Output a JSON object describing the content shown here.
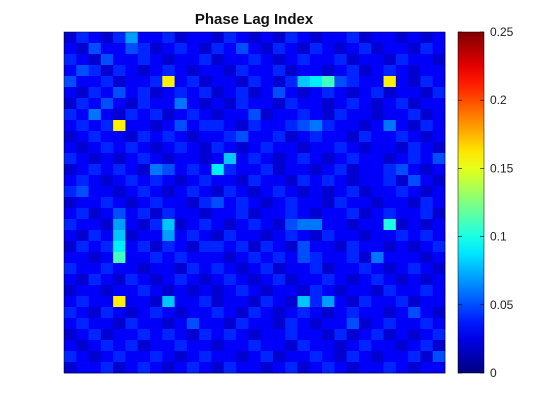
{
  "chart_data": {
    "type": "heatmap",
    "title": "Phase Lag Index",
    "xlabel": "",
    "ylabel": "",
    "rows": 31,
    "cols": 31,
    "colormap": "jet",
    "clim": [
      0,
      0.25
    ],
    "colorbar_ticks": [
      0,
      0.05,
      0.1,
      0.15,
      0.2,
      0.25
    ],
    "colorbar_tick_labels": [
      "0",
      "0.05",
      "0.1",
      "0.15",
      "0.2",
      "0.25"
    ],
    "background_level": 0.025,
    "values": [
      [
        0.02,
        0.04,
        0.03,
        0.02,
        0.04,
        0.07,
        0.03,
        0.03,
        0.04,
        0.02,
        0.03,
        0.03,
        0.02,
        0.04,
        0.03,
        0.02,
        0.03,
        0.02,
        0.04,
        0.03,
        0.02,
        0.03,
        0.03,
        0.04,
        0.02,
        0.03,
        0.03,
        0.02,
        0.03,
        0.02,
        0.03
      ],
      [
        0.03,
        0.02,
        0.05,
        0.03,
        0.03,
        0.05,
        0.04,
        0.02,
        0.03,
        0.04,
        0.03,
        0.02,
        0.04,
        0.03,
        0.05,
        0.03,
        0.02,
        0.04,
        0.03,
        0.02,
        0.04,
        0.03,
        0.02,
        0.03,
        0.04,
        0.02,
        0.03,
        0.03,
        0.02,
        0.04,
        0.03
      ],
      [
        0.04,
        0.03,
        0.02,
        0.05,
        0.03,
        0.03,
        0.04,
        0.03,
        0.02,
        0.03,
        0.03,
        0.04,
        0.02,
        0.03,
        0.03,
        0.04,
        0.03,
        0.02,
        0.03,
        0.04,
        0.03,
        0.03,
        0.04,
        0.02,
        0.03,
        0.03,
        0.02,
        0.04,
        0.03,
        0.03,
        0.02
      ],
      [
        0.03,
        0.05,
        0.04,
        0.02,
        0.04,
        0.03,
        0.02,
        0.03,
        0.04,
        0.03,
        0.02,
        0.03,
        0.03,
        0.02,
        0.04,
        0.03,
        0.03,
        0.04,
        0.02,
        0.03,
        0.03,
        0.02,
        0.03,
        0.04,
        0.02,
        0.03,
        0.04,
        0.03,
        0.02,
        0.03,
        0.03
      ],
      [
        0.05,
        0.03,
        0.03,
        0.04,
        0.02,
        0.03,
        0.03,
        0.04,
        0.16,
        0.03,
        0.04,
        0.02,
        0.03,
        0.03,
        0.02,
        0.04,
        0.03,
        0.02,
        0.04,
        0.08,
        0.09,
        0.11,
        0.05,
        0.04,
        0.03,
        0.03,
        0.16,
        0.03,
        0.02,
        0.04,
        0.03
      ],
      [
        0.03,
        0.02,
        0.04,
        0.03,
        0.05,
        0.03,
        0.04,
        0.02,
        0.03,
        0.04,
        0.03,
        0.04,
        0.02,
        0.03,
        0.04,
        0.02,
        0.03,
        0.05,
        0.03,
        0.02,
        0.03,
        0.04,
        0.03,
        0.02,
        0.03,
        0.04,
        0.02,
        0.03,
        0.03,
        0.02,
        0.04
      ],
      [
        0.02,
        0.04,
        0.03,
        0.05,
        0.03,
        0.02,
        0.04,
        0.03,
        0.03,
        0.06,
        0.03,
        0.02,
        0.03,
        0.02,
        0.04,
        0.03,
        0.03,
        0.02,
        0.04,
        0.03,
        0.03,
        0.02,
        0.03,
        0.04,
        0.03,
        0.02,
        0.03,
        0.04,
        0.02,
        0.03,
        0.03
      ],
      [
        0.04,
        0.03,
        0.06,
        0.03,
        0.02,
        0.04,
        0.03,
        0.04,
        0.02,
        0.03,
        0.04,
        0.03,
        0.02,
        0.03,
        0.03,
        0.05,
        0.02,
        0.03,
        0.03,
        0.04,
        0.03,
        0.02,
        0.04,
        0.03,
        0.03,
        0.02,
        0.03,
        0.03,
        0.04,
        0.02,
        0.03
      ],
      [
        0.03,
        0.04,
        0.03,
        0.04,
        0.16,
        0.03,
        0.03,
        0.02,
        0.03,
        0.05,
        0.03,
        0.04,
        0.04,
        0.03,
        0.02,
        0.04,
        0.03,
        0.03,
        0.04,
        0.05,
        0.06,
        0.04,
        0.03,
        0.03,
        0.02,
        0.03,
        0.06,
        0.03,
        0.02,
        0.04,
        0.03
      ],
      [
        0.02,
        0.03,
        0.04,
        0.03,
        0.03,
        0.02,
        0.04,
        0.03,
        0.04,
        0.03,
        0.02,
        0.03,
        0.03,
        0.04,
        0.05,
        0.03,
        0.03,
        0.04,
        0.02,
        0.03,
        0.04,
        0.03,
        0.03,
        0.02,
        0.04,
        0.03,
        0.03,
        0.04,
        0.03,
        0.02,
        0.03
      ],
      [
        0.03,
        0.02,
        0.03,
        0.04,
        0.03,
        0.04,
        0.03,
        0.02,
        0.03,
        0.04,
        0.03,
        0.02,
        0.04,
        0.03,
        0.02,
        0.03,
        0.04,
        0.03,
        0.03,
        0.02,
        0.03,
        0.03,
        0.04,
        0.03,
        0.02,
        0.03,
        0.03,
        0.02,
        0.04,
        0.03,
        0.02
      ],
      [
        0.04,
        0.03,
        0.02,
        0.03,
        0.02,
        0.03,
        0.04,
        0.03,
        0.02,
        0.03,
        0.03,
        0.02,
        0.03,
        0.08,
        0.03,
        0.04,
        0.03,
        0.02,
        0.03,
        0.04,
        0.03,
        0.02,
        0.03,
        0.04,
        0.03,
        0.03,
        0.02,
        0.03,
        0.04,
        0.03,
        0.05
      ],
      [
        0.02,
        0.03,
        0.04,
        0.03,
        0.04,
        0.03,
        0.02,
        0.06,
        0.05,
        0.03,
        0.04,
        0.03,
        0.09,
        0.04,
        0.03,
        0.03,
        0.04,
        0.02,
        0.03,
        0.03,
        0.02,
        0.03,
        0.04,
        0.02,
        0.03,
        0.03,
        0.04,
        0.05,
        0.03,
        0.02,
        0.03
      ],
      [
        0.03,
        0.04,
        0.03,
        0.02,
        0.03,
        0.04,
        0.03,
        0.04,
        0.03,
        0.02,
        0.03,
        0.04,
        0.03,
        0.03,
        0.02,
        0.04,
        0.03,
        0.03,
        0.02,
        0.04,
        0.03,
        0.04,
        0.03,
        0.02,
        0.03,
        0.03,
        0.04,
        0.02,
        0.05,
        0.03,
        0.02
      ],
      [
        0.04,
        0.05,
        0.03,
        0.03,
        0.02,
        0.03,
        0.04,
        0.03,
        0.02,
        0.03,
        0.04,
        0.03,
        0.02,
        0.04,
        0.03,
        0.02,
        0.03,
        0.04,
        0.03,
        0.02,
        0.03,
        0.02,
        0.03,
        0.04,
        0.02,
        0.03,
        0.03,
        0.04,
        0.03,
        0.02,
        0.03
      ],
      [
        0.02,
        0.03,
        0.03,
        0.04,
        0.03,
        0.02,
        0.03,
        0.04,
        0.03,
        0.03,
        0.02,
        0.04,
        0.05,
        0.03,
        0.04,
        0.03,
        0.02,
        0.03,
        0.04,
        0.03,
        0.03,
        0.02,
        0.04,
        0.03,
        0.03,
        0.02,
        0.03,
        0.03,
        0.02,
        0.04,
        0.03
      ],
      [
        0.03,
        0.04,
        0.02,
        0.03,
        0.05,
        0.03,
        0.04,
        0.02,
        0.04,
        0.03,
        0.03,
        0.02,
        0.03,
        0.03,
        0.04,
        0.02,
        0.03,
        0.03,
        0.04,
        0.03,
        0.02,
        0.03,
        0.03,
        0.04,
        0.02,
        0.03,
        0.04,
        0.03,
        0.03,
        0.04,
        0.02
      ],
      [
        0.04,
        0.03,
        0.03,
        0.02,
        0.07,
        0.03,
        0.02,
        0.04,
        0.08,
        0.02,
        0.03,
        0.04,
        0.03,
        0.02,
        0.03,
        0.04,
        0.03,
        0.02,
        0.05,
        0.06,
        0.06,
        0.03,
        0.03,
        0.02,
        0.03,
        0.03,
        0.1,
        0.02,
        0.03,
        0.02,
        0.03
      ],
      [
        0.03,
        0.02,
        0.04,
        0.03,
        0.08,
        0.02,
        0.03,
        0.03,
        0.07,
        0.03,
        0.04,
        0.03,
        0.02,
        0.04,
        0.03,
        0.03,
        0.02,
        0.03,
        0.04,
        0.03,
        0.02,
        0.04,
        0.03,
        0.03,
        0.02,
        0.03,
        0.03,
        0.04,
        0.03,
        0.04,
        0.03
      ],
      [
        0.02,
        0.04,
        0.03,
        0.04,
        0.09,
        0.03,
        0.04,
        0.02,
        0.04,
        0.03,
        0.02,
        0.04,
        0.04,
        0.03,
        0.04,
        0.02,
        0.04,
        0.03,
        0.02,
        0.05,
        0.03,
        0.03,
        0.02,
        0.04,
        0.03,
        0.03,
        0.02,
        0.03,
        0.02,
        0.03,
        0.04
      ],
      [
        0.03,
        0.03,
        0.02,
        0.03,
        0.11,
        0.03,
        0.03,
        0.04,
        0.03,
        0.04,
        0.03,
        0.03,
        0.03,
        0.02,
        0.03,
        0.04,
        0.03,
        0.04,
        0.03,
        0.05,
        0.04,
        0.03,
        0.03,
        0.04,
        0.02,
        0.06,
        0.03,
        0.03,
        0.03,
        0.02,
        0.03
      ],
      [
        0.04,
        0.03,
        0.03,
        0.04,
        0.03,
        0.03,
        0.02,
        0.03,
        0.03,
        0.02,
        0.04,
        0.03,
        0.04,
        0.03,
        0.02,
        0.03,
        0.04,
        0.02,
        0.03,
        0.03,
        0.04,
        0.02,
        0.03,
        0.03,
        0.04,
        0.03,
        0.02,
        0.03,
        0.04,
        0.03,
        0.02
      ],
      [
        0.03,
        0.02,
        0.04,
        0.03,
        0.02,
        0.04,
        0.03,
        0.02,
        0.03,
        0.04,
        0.03,
        0.02,
        0.03,
        0.04,
        0.03,
        0.02,
        0.03,
        0.04,
        0.02,
        0.03,
        0.03,
        0.04,
        0.03,
        0.02,
        0.03,
        0.04,
        0.03,
        0.02,
        0.03,
        0.02,
        0.03
      ],
      [
        0.02,
        0.03,
        0.03,
        0.02,
        0.03,
        0.03,
        0.04,
        0.03,
        0.02,
        0.03,
        0.02,
        0.03,
        0.02,
        0.03,
        0.04,
        0.03,
        0.02,
        0.03,
        0.03,
        0.02,
        0.04,
        0.03,
        0.02,
        0.03,
        0.03,
        0.02,
        0.04,
        0.03,
        0.03,
        0.04,
        0.03
      ],
      [
        0.03,
        0.04,
        0.03,
        0.03,
        0.16,
        0.03,
        0.03,
        0.02,
        0.08,
        0.03,
        0.03,
        0.04,
        0.02,
        0.03,
        0.03,
        0.02,
        0.04,
        0.03,
        0.02,
        0.08,
        0.04,
        0.07,
        0.03,
        0.02,
        0.04,
        0.03,
        0.03,
        0.04,
        0.02,
        0.03,
        0.03
      ],
      [
        0.04,
        0.03,
        0.02,
        0.04,
        0.03,
        0.02,
        0.03,
        0.04,
        0.03,
        0.02,
        0.03,
        0.03,
        0.04,
        0.03,
        0.02,
        0.04,
        0.03,
        0.02,
        0.03,
        0.04,
        0.03,
        0.02,
        0.03,
        0.04,
        0.03,
        0.03,
        0.02,
        0.03,
        0.05,
        0.03,
        0.02
      ],
      [
        0.03,
        0.04,
        0.03,
        0.03,
        0.02,
        0.04,
        0.03,
        0.03,
        0.02,
        0.03,
        0.05,
        0.03,
        0.03,
        0.02,
        0.04,
        0.03,
        0.03,
        0.02,
        0.04,
        0.03,
        0.02,
        0.03,
        0.03,
        0.05,
        0.02,
        0.03,
        0.04,
        0.03,
        0.03,
        0.04,
        0.03
      ],
      [
        0.02,
        0.03,
        0.04,
        0.02,
        0.03,
        0.03,
        0.04,
        0.03,
        0.04,
        0.03,
        0.02,
        0.04,
        0.03,
        0.04,
        0.03,
        0.02,
        0.03,
        0.03,
        0.04,
        0.03,
        0.03,
        0.02,
        0.04,
        0.02,
        0.03,
        0.04,
        0.02,
        0.03,
        0.02,
        0.03,
        0.04
      ],
      [
        0.03,
        0.02,
        0.03,
        0.04,
        0.03,
        0.04,
        0.02,
        0.03,
        0.03,
        0.04,
        0.03,
        0.03,
        0.02,
        0.03,
        0.03,
        0.04,
        0.03,
        0.03,
        0.02,
        0.04,
        0.03,
        0.03,
        0.02,
        0.03,
        0.04,
        0.03,
        0.03,
        0.02,
        0.03,
        0.04,
        0.02
      ],
      [
        0.04,
        0.03,
        0.02,
        0.03,
        0.04,
        0.03,
        0.03,
        0.04,
        0.03,
        0.02,
        0.03,
        0.04,
        0.03,
        0.03,
        0.02,
        0.03,
        0.04,
        0.02,
        0.03,
        0.03,
        0.04,
        0.03,
        0.02,
        0.04,
        0.03,
        0.02,
        0.03,
        0.03,
        0.04,
        0.02,
        0.05
      ],
      [
        0.02,
        0.03,
        0.03,
        0.04,
        0.02,
        0.03,
        0.04,
        0.03,
        0.02,
        0.03,
        0.04,
        0.03,
        0.02,
        0.04,
        0.03,
        0.03,
        0.02,
        0.03,
        0.04,
        0.02,
        0.03,
        0.04,
        0.03,
        0.02,
        0.03,
        0.03,
        0.04,
        0.03,
        0.02,
        0.03,
        0.03
      ]
    ]
  }
}
